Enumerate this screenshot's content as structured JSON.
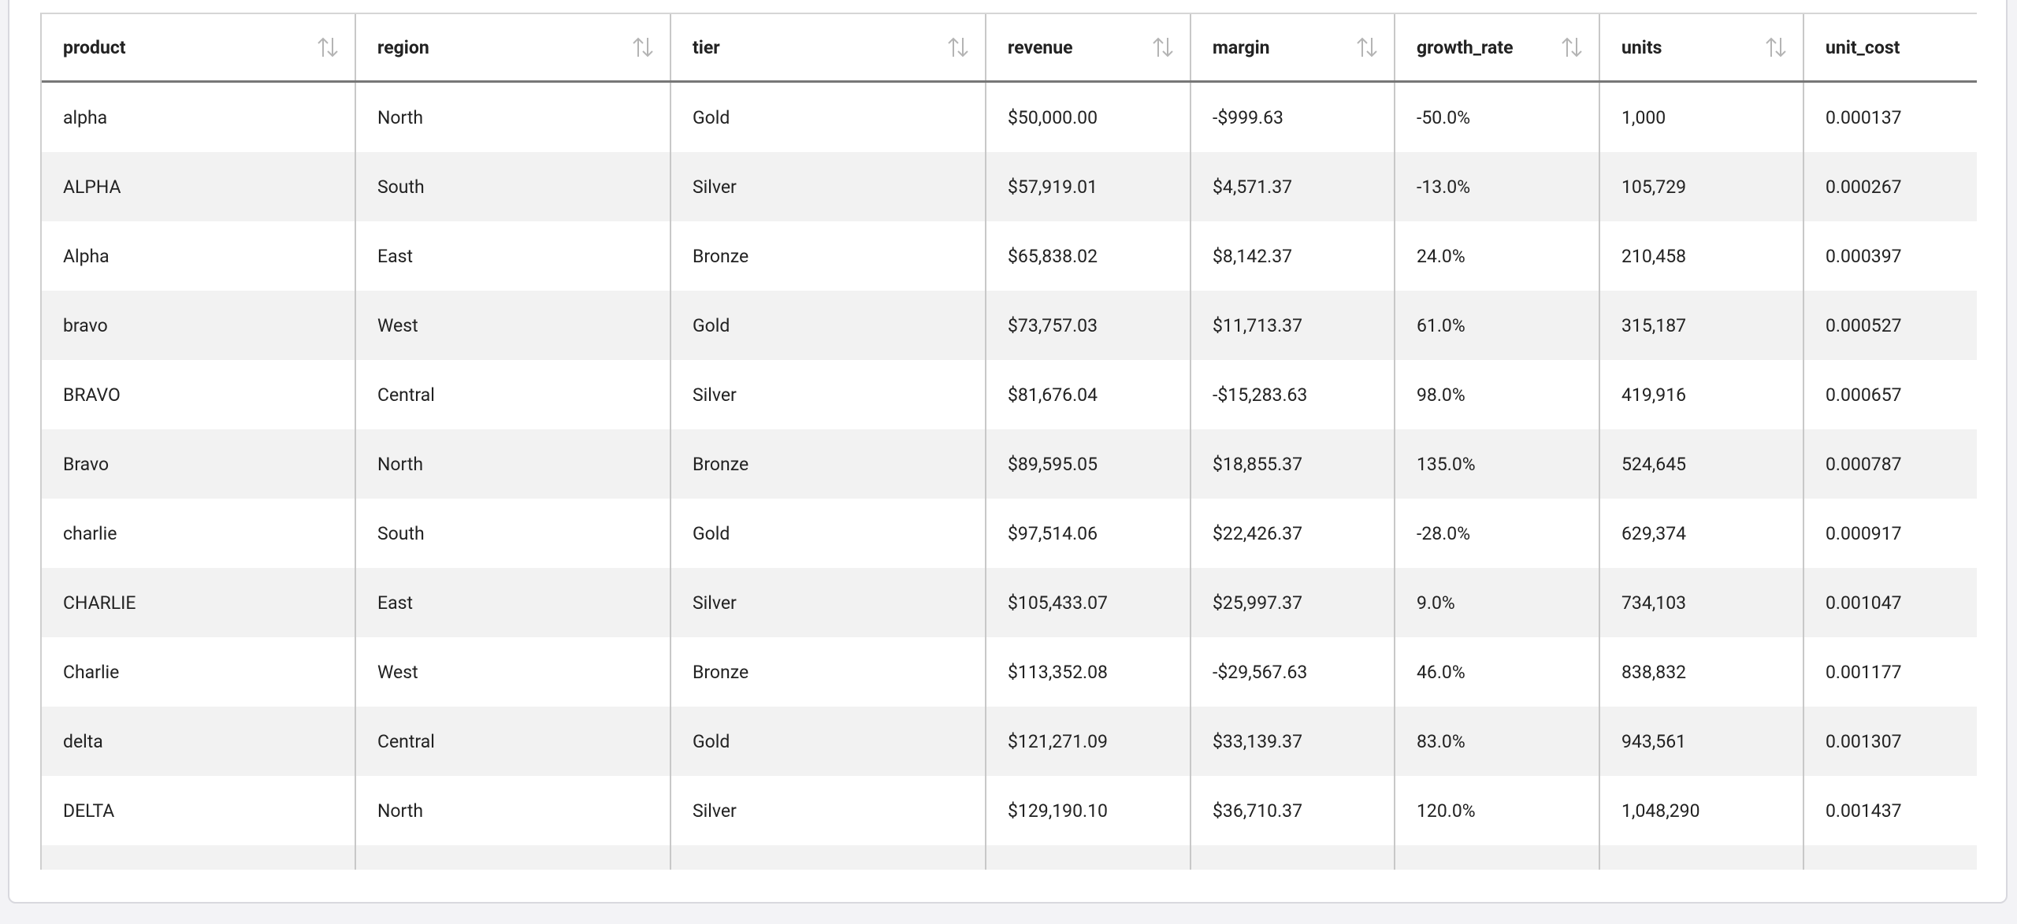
{
  "table": {
    "columns": [
      "product",
      "region",
      "tier",
      "revenue",
      "margin",
      "growth_rate",
      "units",
      "unit_cost"
    ],
    "rows": [
      [
        "alpha",
        "North",
        "Gold",
        "$50,000.00",
        "-$999.63",
        "-50.0%",
        "1,000",
        "0.000137"
      ],
      [
        "ALPHA",
        "South",
        "Silver",
        "$57,919.01",
        "$4,571.37",
        "-13.0%",
        "105,729",
        "0.000267"
      ],
      [
        "Alpha",
        "East",
        "Bronze",
        "$65,838.02",
        "$8,142.37",
        "24.0%",
        "210,458",
        "0.000397"
      ],
      [
        "bravo",
        "West",
        "Gold",
        "$73,757.03",
        "$11,713.37",
        "61.0%",
        "315,187",
        "0.000527"
      ],
      [
        "BRAVO",
        "Central",
        "Silver",
        "$81,676.04",
        "-$15,283.63",
        "98.0%",
        "419,916",
        "0.000657"
      ],
      [
        "Bravo",
        "North",
        "Bronze",
        "$89,595.05",
        "$18,855.37",
        "135.0%",
        "524,645",
        "0.000787"
      ],
      [
        "charlie",
        "South",
        "Gold",
        "$97,514.06",
        "$22,426.37",
        "-28.0%",
        "629,374",
        "0.000917"
      ],
      [
        "CHARLIE",
        "East",
        "Silver",
        "$105,433.07",
        "$25,997.37",
        "9.0%",
        "734,103",
        "0.001047"
      ],
      [
        "Charlie",
        "West",
        "Bronze",
        "$113,352.08",
        "-$29,567.63",
        "46.0%",
        "838,832",
        "0.001177"
      ],
      [
        "delta",
        "Central",
        "Gold",
        "$121,271.09",
        "$33,139.37",
        "83.0%",
        "943,561",
        "0.001307"
      ],
      [
        "DELTA",
        "North",
        "Silver",
        "$129,190.10",
        "$36,710.37",
        "120.0%",
        "1,048,290",
        "0.001437"
      ]
    ]
  }
}
